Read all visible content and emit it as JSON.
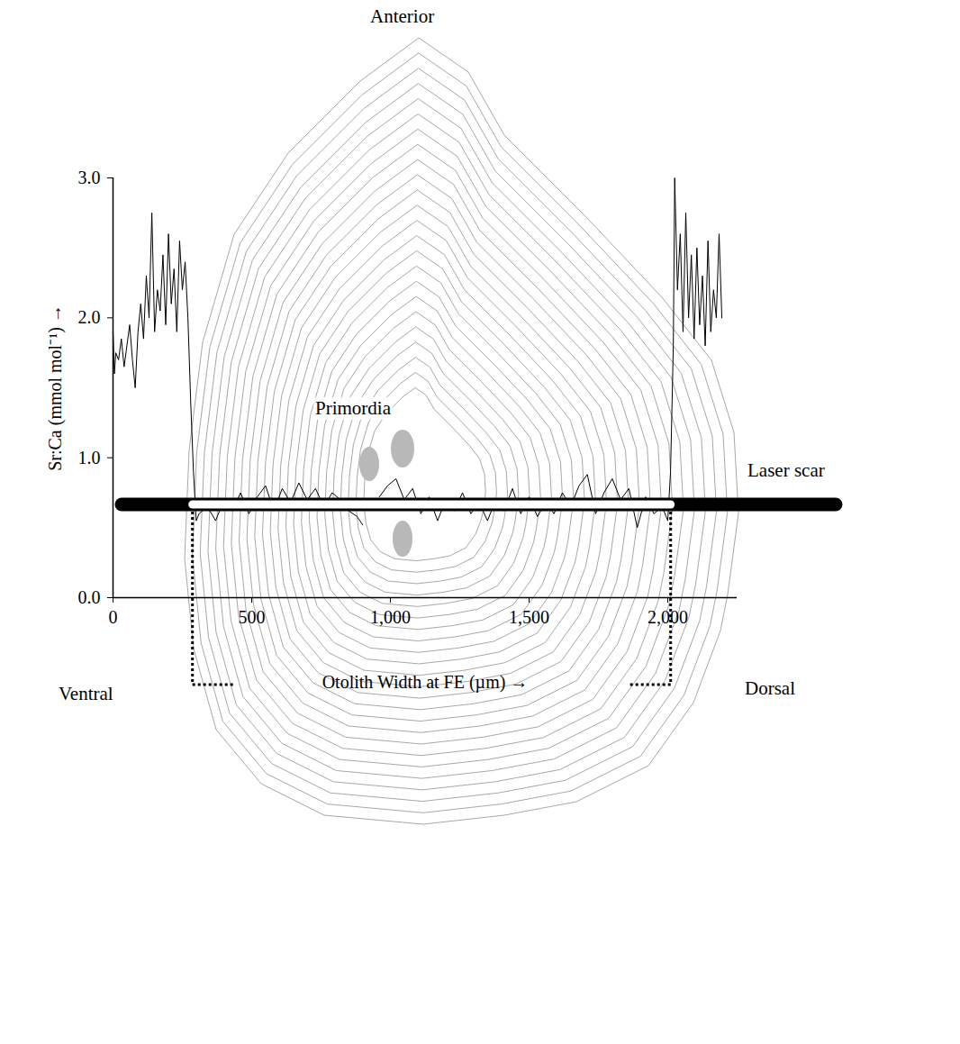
{
  "chart_data": {
    "type": "line",
    "x_label": "Otolith Width at FE (µm)",
    "y_label": "Sr:Ca (mmol mol⁻¹)",
    "color": "#000000",
    "xlim": [
      0,
      2250
    ],
    "xticks": [
      0,
      500,
      1000,
      1500,
      2000
    ],
    "ylim": [
      0,
      3
    ],
    "yticks": [
      0,
      1,
      2,
      3
    ],
    "otolith_width_at_fe": [
      288,
      2012
    ],
    "annotations": [
      "Anterior",
      "Ventral",
      "Dorsal",
      "Primordia",
      "Laser scar"
    ],
    "x": [
      0,
      5,
      10,
      20,
      30,
      40,
      50,
      60,
      70,
      80,
      90,
      100,
      110,
      120,
      130,
      140,
      150,
      160,
      170,
      180,
      190,
      200,
      210,
      220,
      230,
      240,
      250,
      260,
      270,
      280,
      290,
      300,
      310,
      340,
      370,
      400,
      430,
      460,
      490,
      520,
      550,
      580,
      610,
      640,
      670,
      700,
      730,
      760,
      790,
      820,
      850,
      880,
      900,
      910,
      960,
      990,
      1020,
      1050,
      1080,
      1110,
      1140,
      1170,
      1200,
      1230,
      1260,
      1290,
      1320,
      1350,
      1380,
      1410,
      1440,
      1470,
      1500,
      1530,
      1560,
      1590,
      1620,
      1650,
      1680,
      1710,
      1740,
      1770,
      1800,
      1830,
      1860,
      1890,
      1920,
      1950,
      1980,
      2000,
      2010,
      2020,
      2025,
      2035,
      2045,
      2055,
      2065,
      2075,
      2085,
      2095,
      2105,
      2115,
      2125,
      2135,
      2145,
      2155,
      2165,
      2175,
      2185,
      2195
    ],
    "values": [
      1.9,
      1.6,
      1.75,
      1.7,
      1.85,
      1.65,
      1.8,
      1.95,
      1.7,
      1.5,
      1.9,
      2.1,
      1.85,
      2.3,
      2.0,
      2.75,
      1.9,
      2.2,
      2.05,
      2.45,
      1.95,
      2.6,
      2.1,
      2.35,
      1.9,
      2.55,
      2.2,
      2.4,
      2.0,
      1.4,
      0.9,
      0.55,
      0.6,
      0.65,
      0.55,
      0.7,
      0.62,
      0.75,
      0.6,
      0.72,
      0.8,
      0.62,
      0.78,
      0.68,
      0.82,
      0.7,
      0.78,
      0.65,
      0.75,
      0.7,
      0.62,
      0.58,
      0.52,
      null,
      0.72,
      0.8,
      0.85,
      0.7,
      0.78,
      0.6,
      0.72,
      0.55,
      0.7,
      0.62,
      0.75,
      0.6,
      0.68,
      0.55,
      0.7,
      0.62,
      0.78,
      0.6,
      0.72,
      0.58,
      0.68,
      0.6,
      0.75,
      0.65,
      0.8,
      0.88,
      0.6,
      0.75,
      0.85,
      0.7,
      0.78,
      0.5,
      0.72,
      0.6,
      0.65,
      0.55,
      0.9,
      1.8,
      3.0,
      2.2,
      2.6,
      1.9,
      2.75,
      2.0,
      2.45,
      1.85,
      2.5,
      1.95,
      2.3,
      1.8,
      2.55,
      1.9,
      2.2,
      2.0,
      2.6,
      2.0
    ]
  }
}
